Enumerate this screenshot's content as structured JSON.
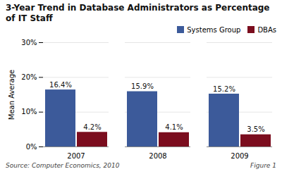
{
  "chart_data": {
    "type": "bar",
    "title": "3-Year Trend in Database Administrators as Percentage\nof IT Staff",
    "categories": [
      "2007",
      "2008",
      "2009"
    ],
    "series": [
      {
        "name": "Systems Group",
        "color": "#3C5A9A",
        "values": [
          16.4,
          15.9,
          15.2
        ],
        "value_labels": [
          "16.4%",
          "15.9%",
          "15.2%"
        ]
      },
      {
        "name": "DBAs",
        "color": "#7B0D1E",
        "values": [
          4.2,
          4.1,
          3.5
        ],
        "value_labels": [
          "4.2%",
          "4.1%",
          "3.5%"
        ]
      }
    ],
    "ylabel": "Mean Average",
    "ylim": [
      0,
      30
    ],
    "yticks": [
      {
        "value": 0,
        "label": "0%"
      },
      {
        "value": 10,
        "label": "10%"
      },
      {
        "value": 20,
        "label": "20%"
      },
      {
        "value": 30,
        "label": "30%"
      }
    ],
    "grid": true,
    "legend": "upper right",
    "data_labels": true,
    "annotations": [
      "Source: Computer Economics, 2010",
      "Figure 1"
    ]
  }
}
